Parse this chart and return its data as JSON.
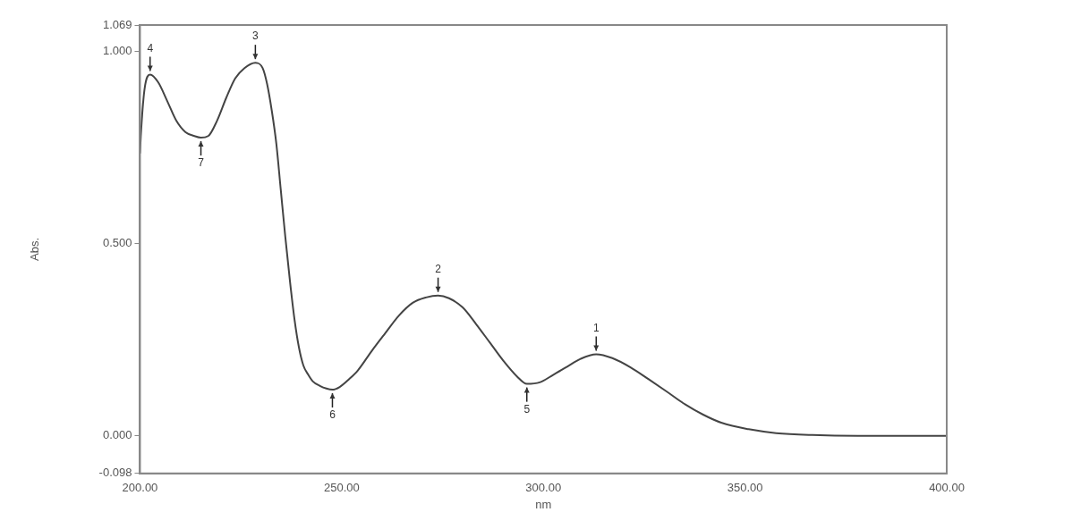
{
  "chart_data": {
    "type": "line",
    "xlabel": "nm",
    "ylabel": "Abs.",
    "xlim": [
      200,
      400
    ],
    "ylim": [
      -0.098,
      1.069
    ],
    "xticks": [
      {
        "value": 200,
        "label": "200.00"
      },
      {
        "value": 250,
        "label": "250.00"
      },
      {
        "value": 300,
        "label": "300.00"
      },
      {
        "value": 350,
        "label": "350.00"
      },
      {
        "value": 400,
        "label": "400.00"
      }
    ],
    "yticks": [
      {
        "value": -0.098,
        "label": "-0.098"
      },
      {
        "value": 0,
        "label": "0.000"
      },
      {
        "value": 0.5,
        "label": "0.500"
      },
      {
        "value": 1,
        "label": "1.000"
      },
      {
        "value": 1.069,
        "label": "1.069"
      }
    ],
    "grid": false,
    "legend": false,
    "marker": "none",
    "line_style": "solid",
    "series": [
      {
        "color": "#444444",
        "x": [
          200,
          200.2,
          201.1,
          202.5,
          204.5,
          206.8,
          209,
          211.3,
          213.5,
          215.1,
          216.9,
          219.1,
          221.4,
          223.6,
          225.9,
          228.6,
          230.4,
          231.5,
          232.7,
          233.8,
          234.9,
          236,
          237.2,
          238.3,
          239.4,
          240.5,
          241.7,
          242.8,
          244.6,
          246.2,
          247.7,
          249.5,
          251.8,
          254,
          257.4,
          260.8,
          264.2,
          267.6,
          270.9,
          273.9,
          276.6,
          280,
          283.3,
          286.7,
          290.1,
          293.5,
          295.9,
          299.1,
          302.5,
          305.9,
          309.2,
          313.1,
          317.1,
          321.6,
          326.1,
          330.6,
          335.1,
          339.6,
          344.1,
          350.9,
          357.7,
          366.7,
          377.9,
          400
        ],
        "values": [
          0.735,
          0.78,
          0.9,
          0.94,
          0.92,
          0.87,
          0.82,
          0.79,
          0.78,
          0.776,
          0.78,
          0.82,
          0.88,
          0.93,
          0.957,
          0.971,
          0.957,
          0.916,
          0.844,
          0.76,
          0.64,
          0.52,
          0.4,
          0.303,
          0.23,
          0.183,
          0.159,
          0.142,
          0.13,
          0.123,
          0.12,
          0.127,
          0.147,
          0.17,
          0.22,
          0.267,
          0.313,
          0.346,
          0.36,
          0.365,
          0.358,
          0.334,
          0.291,
          0.243,
          0.195,
          0.154,
          0.135,
          0.139,
          0.159,
          0.18,
          0.2,
          0.212,
          0.202,
          0.178,
          0.147,
          0.115,
          0.082,
          0.055,
          0.034,
          0.017,
          0.007,
          0.002,
          0,
          0
        ]
      }
    ],
    "annotations": [
      {
        "text": "4",
        "x": 202.5,
        "y": 0.94
      },
      {
        "text": "7",
        "x": 215.1,
        "y": 0.776
      },
      {
        "text": "3",
        "x": 228.6,
        "y": 0.971
      },
      {
        "text": "6",
        "x": 247.7,
        "y": 0.12
      },
      {
        "text": "2",
        "x": 273.9,
        "y": 0.365
      },
      {
        "text": "5",
        "x": 295.9,
        "y": 0.135
      },
      {
        "text": "1",
        "x": 313.1,
        "y": 0.212
      }
    ]
  }
}
